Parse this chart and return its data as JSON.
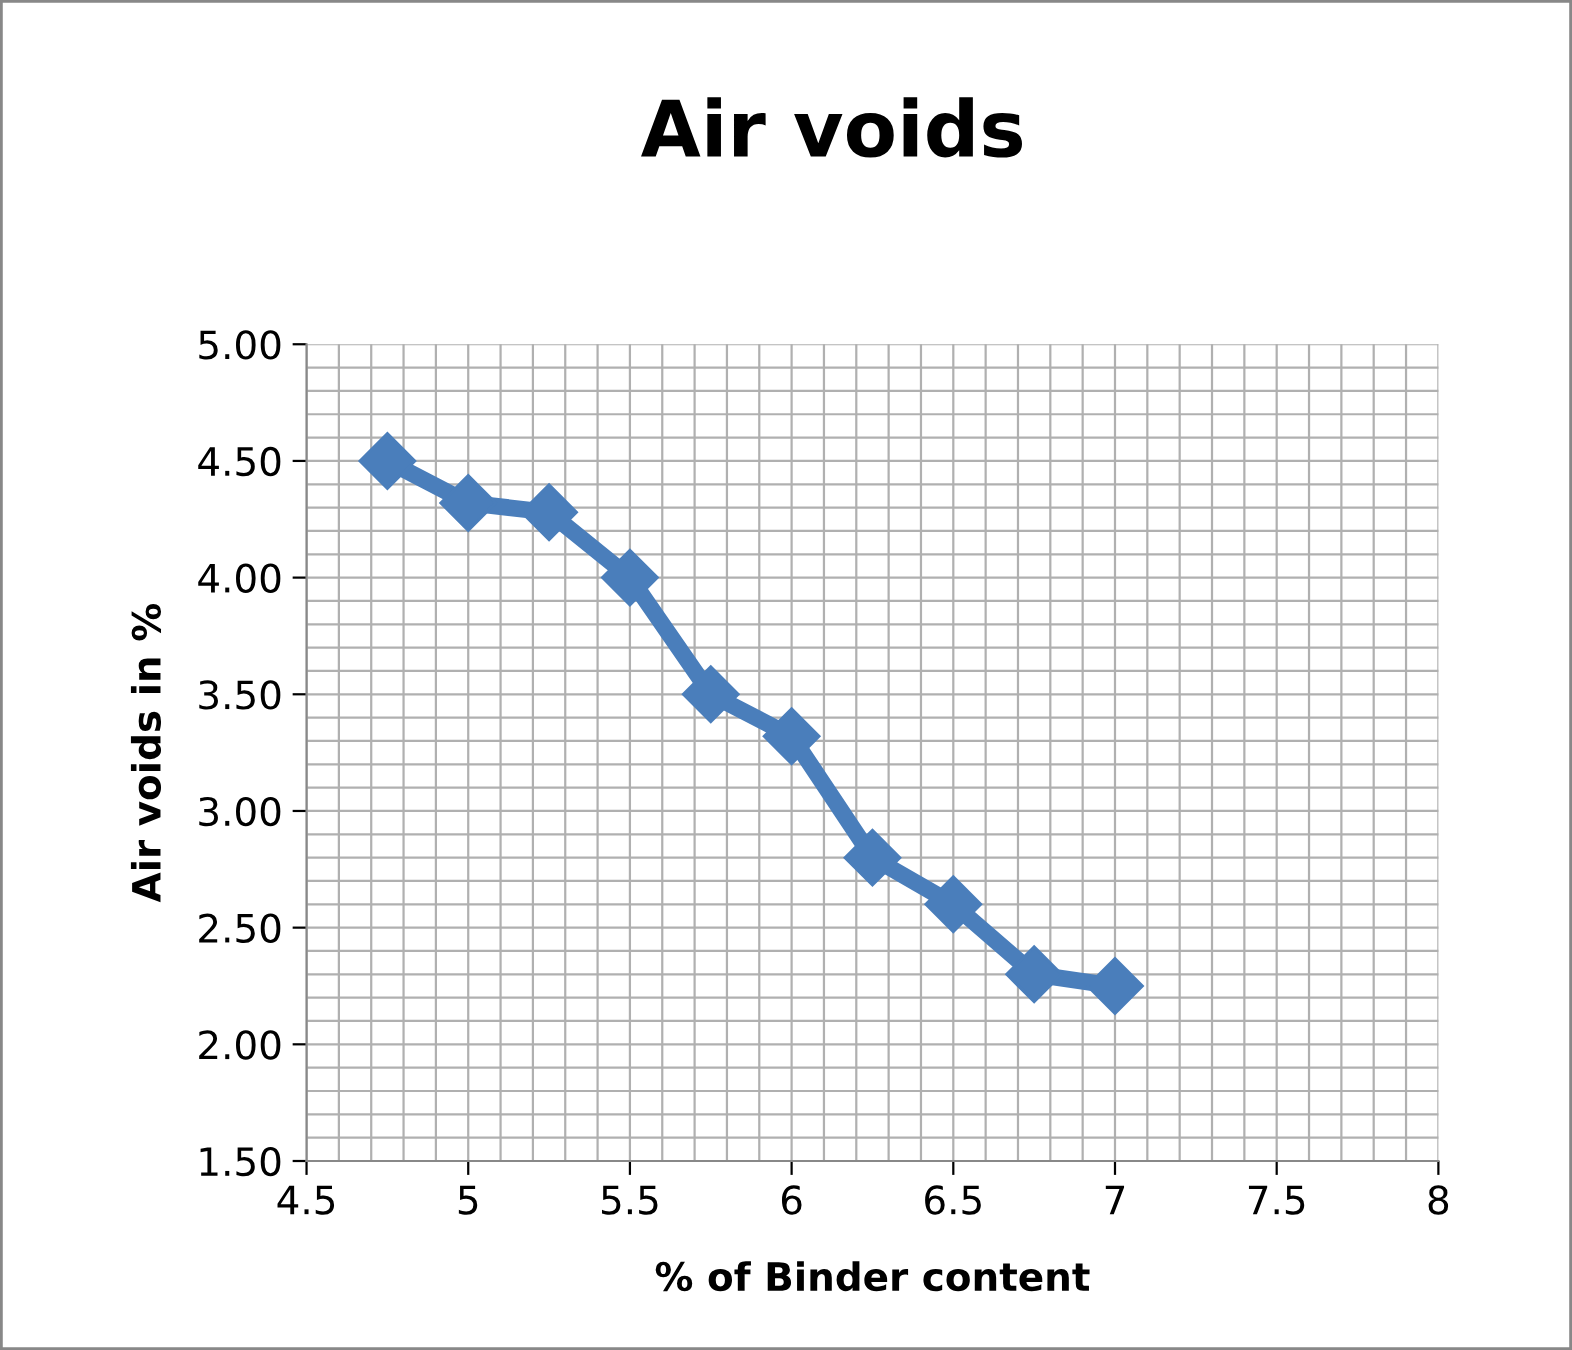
{
  "chart_data": {
    "type": "line",
    "title": "Air voids",
    "xlabel": "% of Binder content",
    "ylabel": "Air voids in %",
    "x": [
      4.75,
      5,
      5.25,
      5.5,
      5.75,
      6,
      6.25,
      6.5,
      6.75,
      7
    ],
    "series": [
      {
        "color": "#4a7ebb",
        "values": [
          4.5,
          4.32,
          4.28,
          4.0,
          3.5,
          3.32,
          2.8,
          2.6,
          2.3,
          2.25
        ]
      }
    ],
    "xlim": [
      4.5,
      8
    ],
    "xticks": [
      4.5,
      5,
      5.5,
      6,
      6.5,
      7,
      7.5,
      8
    ],
    "ylim": [
      1.5,
      5.0
    ],
    "yticks": [
      {
        "value": 1.5,
        "label": "1.50"
      },
      {
        "value": 2,
        "label": "2.00"
      },
      {
        "value": 2.5,
        "label": "2.50"
      },
      {
        "value": 3,
        "label": "3.00"
      },
      {
        "value": 3.5,
        "label": "3.50"
      },
      {
        "value": 4,
        "label": "4.00"
      },
      {
        "value": 4.5,
        "label": "4.50"
      },
      {
        "value": 5,
        "label": "5.00"
      }
    ],
    "grid": true,
    "marker": "diamond",
    "line_style": "solid"
  }
}
